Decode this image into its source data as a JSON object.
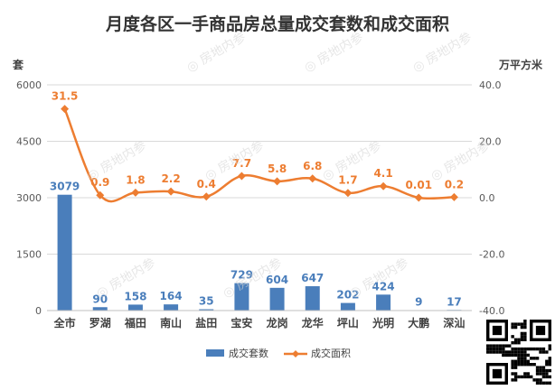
{
  "chart_data": {
    "type": "bar",
    "title": "月度各区一手商品房总量成交套数和成交面积",
    "y_left_unit": "套",
    "y_right_unit": "万平方米",
    "categories": [
      "全市",
      "罗湖",
      "福田",
      "南山",
      "盐田",
      "宝安",
      "龙岗",
      "龙华",
      "坪山",
      "光明",
      "大鹏",
      "深汕"
    ],
    "series": [
      {
        "name": "成交套数",
        "kind": "bar",
        "axis": "left",
        "color": "#4A7EBB",
        "values": [
          3079,
          90,
          158,
          164,
          35,
          729,
          604,
          647,
          202,
          424,
          9,
          17
        ],
        "labels": [
          "3079",
          "90",
          "158",
          "164",
          "35",
          "729",
          "604",
          "647",
          "202",
          "424",
          "9",
          "17"
        ]
      },
      {
        "name": "成交面积",
        "kind": "line",
        "axis": "right",
        "color": "#ED7D31",
        "values": [
          31.5,
          0.9,
          1.8,
          2.2,
          0.4,
          7.7,
          5.8,
          6.8,
          1.7,
          4.1,
          0.01,
          0.2
        ],
        "labels": [
          "31.5",
          "0.9",
          "1.8",
          "2.2",
          "0.4",
          "7.7",
          "5.8",
          "6.8",
          "1.7",
          "4.1",
          "0.01",
          "0.2"
        ]
      }
    ],
    "y_left": {
      "min": 0,
      "max": 6000,
      "ticks": [
        "0",
        "1500",
        "3000",
        "4500",
        "6000"
      ]
    },
    "y_right": {
      "min": -40,
      "max": 40,
      "ticks": [
        "-40.0",
        "-20.0",
        "0.0",
        "20.0",
        "40.0"
      ]
    },
    "grid": true,
    "legend_position": "bottom",
    "watermark": "房地内参"
  }
}
